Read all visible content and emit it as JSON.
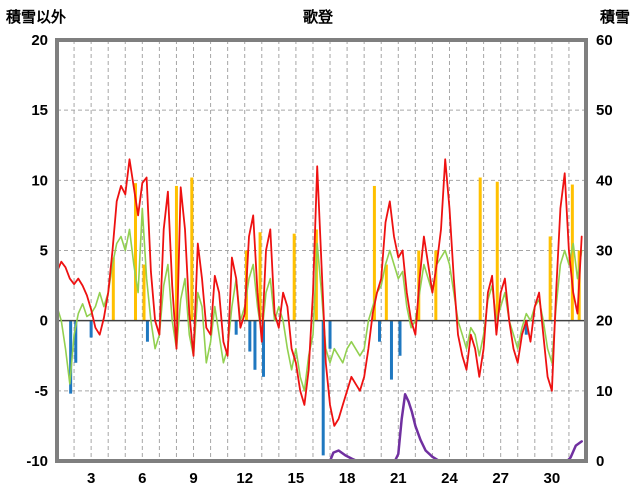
{
  "page": {
    "title": "歌登",
    "left_axis_label": "積雪以外",
    "right_axis_label": "積雪"
  },
  "chart_data": {
    "type": "line",
    "title": "歌登",
    "left_axis": {
      "label": "積雪以外",
      "min": -10,
      "max": 20,
      "ticks": [
        20,
        15,
        10,
        5,
        0,
        -5,
        -10
      ]
    },
    "right_axis": {
      "label": "積雪",
      "min": 0,
      "max": 60,
      "ticks": [
        60,
        50,
        40,
        30,
        20,
        10,
        0
      ]
    },
    "x_axis": {
      "min": 1,
      "max": 32,
      "tick_labels": [
        3,
        6,
        9,
        12,
        15,
        18,
        21,
        24,
        27,
        30
      ],
      "grid_interval": 1
    },
    "style": {
      "frame_color": "#7f7f7f",
      "grid_color": "#a6a6a6",
      "zero_line_color": "#404040",
      "background": "#ffffff"
    },
    "series": [
      {
        "name": "orange-bars",
        "type": "bar",
        "axis": "left",
        "color": "#ffc000",
        "points": [
          [
            4.3,
            4.5
          ],
          [
            5.6,
            9.8
          ],
          [
            6.1,
            4.0
          ],
          [
            8.0,
            9.6
          ],
          [
            8.9,
            10.2
          ],
          [
            12.1,
            5.0
          ],
          [
            12.9,
            6.3
          ],
          [
            14.9,
            6.2
          ],
          [
            16.2,
            6.5
          ],
          [
            19.6,
            9.6
          ],
          [
            20.3,
            4.0
          ],
          [
            22.2,
            5.0
          ],
          [
            23.2,
            5.0
          ],
          [
            25.8,
            10.2
          ],
          [
            26.8,
            9.9
          ],
          [
            29.9,
            6.0
          ],
          [
            31.2,
            9.7
          ],
          [
            31.6,
            5.0
          ]
        ]
      },
      {
        "name": "blue-bars",
        "type": "bar",
        "axis": "left",
        "color": "#1f78c0",
        "points": [
          [
            1.8,
            -5.2
          ],
          [
            2.1,
            -3.0
          ],
          [
            3.0,
            -1.2
          ],
          [
            6.3,
            -1.5
          ],
          [
            11.5,
            -1.0
          ],
          [
            12.3,
            -2.2
          ],
          [
            12.6,
            -3.5
          ],
          [
            13.1,
            -4.0
          ],
          [
            16.6,
            -9.6
          ],
          [
            17.0,
            -2.0
          ],
          [
            19.9,
            -1.5
          ],
          [
            20.6,
            -4.2
          ],
          [
            21.1,
            -2.5
          ],
          [
            28.5,
            -1.0
          ]
        ]
      },
      {
        "name": "green-line",
        "type": "line",
        "axis": "left",
        "color": "#92d050",
        "width": 1.6,
        "x_start": 1,
        "x_step": 0.25,
        "values": [
          1.0,
          0.0,
          -2.0,
          -4.5,
          -1.0,
          0.5,
          1.2,
          0.3,
          0.5,
          1.0,
          2.0,
          1.0,
          2.0,
          4.0,
          5.5,
          6.0,
          5.0,
          6.5,
          4.0,
          2.0,
          8.0,
          3.0,
          0.0,
          -2.0,
          -1.0,
          2.5,
          4.0,
          0.0,
          -2.0,
          1.5,
          3.0,
          -1.0,
          -2.5,
          2.0,
          1.0,
          -3.0,
          -1.5,
          1.0,
          -1.0,
          -3.0,
          -2.0,
          1.0,
          3.0,
          0.0,
          1.0,
          3.0,
          4.0,
          1.0,
          -1.0,
          2.0,
          3.0,
          0.0,
          1.0,
          0.0,
          -2.0,
          -3.5,
          -2.0,
          -4.0,
          -5.0,
          -2.5,
          -1.0,
          5.5,
          2.0,
          -2.0,
          -3.0,
          -2.0,
          -2.5,
          -3.0,
          -2.0,
          -1.5,
          -2.0,
          -2.5,
          -2.0,
          0.0,
          1.0,
          2.0,
          2.5,
          4.0,
          5.0,
          4.0,
          3.0,
          3.5,
          1.0,
          -0.5,
          0.0,
          2.0,
          4.0,
          3.0,
          2.0,
          4.0,
          4.5,
          5.0,
          4.0,
          2.0,
          0.0,
          -1.0,
          -2.0,
          -0.5,
          -1.0,
          -2.5,
          -1.0,
          1.5,
          2.5,
          0.0,
          1.0,
          2.0,
          0.0,
          -1.0,
          -2.0,
          -0.5,
          0.5,
          0.0,
          1.0,
          1.5,
          0.0,
          -2.0,
          -3.0,
          1.0,
          4.0,
          5.0,
          4.0,
          5.5,
          3.0,
          5.0
        ]
      },
      {
        "name": "red-line",
        "type": "line",
        "axis": "left",
        "color": "#ee1111",
        "width": 1.8,
        "x_start": 1,
        "x_step": 0.25,
        "values": [
          3.5,
          4.2,
          3.8,
          3.0,
          2.6,
          3.0,
          2.5,
          1.8,
          0.8,
          -0.5,
          -1.0,
          0.2,
          2.0,
          5.0,
          8.5,
          9.6,
          9.0,
          11.5,
          9.5,
          7.5,
          9.8,
          10.2,
          3.5,
          0.0,
          -1.0,
          6.5,
          9.2,
          2.5,
          -2.0,
          9.5,
          6.5,
          0.5,
          -2.5,
          5.5,
          3.0,
          -0.5,
          -1.0,
          3.2,
          2.0,
          -1.5,
          -2.5,
          4.5,
          3.0,
          -0.5,
          0.5,
          6.0,
          7.5,
          2.0,
          -1.5,
          5.0,
          6.5,
          0.5,
          -0.5,
          2.0,
          1.0,
          -2.0,
          -3.0,
          -5.0,
          -6.0,
          -3.5,
          2.0,
          11.0,
          4.0,
          -3.0,
          -6.0,
          -7.5,
          -7.0,
          -6.0,
          -5.0,
          -4.0,
          -4.5,
          -5.0,
          -4.0,
          -2.0,
          0.5,
          2.0,
          3.0,
          7.0,
          8.5,
          6.0,
          4.5,
          5.0,
          2.0,
          0.0,
          -1.0,
          3.0,
          6.0,
          4.0,
          2.0,
          4.0,
          6.5,
          11.5,
          8.0,
          3.0,
          -1.0,
          -2.5,
          -3.5,
          -1.0,
          -2.0,
          -4.0,
          -2.0,
          2.0,
          3.2,
          -1.0,
          2.0,
          3.0,
          0.0,
          -2.0,
          -3.0,
          -1.0,
          0.0,
          -1.5,
          1.0,
          2.0,
          -1.0,
          -4.0,
          -5.0,
          2.0,
          8.0,
          10.5,
          5.0,
          2.0,
          0.5,
          6.0
        ]
      },
      {
        "name": "purple-snow-line",
        "type": "xyline",
        "axis": "right",
        "color": "#7030a0",
        "width": 2.5,
        "x": [
          1,
          17.0,
          17.2,
          17.5,
          17.9,
          18.3,
          18.6,
          20.8,
          21.0,
          21.2,
          21.4,
          21.6,
          21.8,
          22.0,
          22.3,
          22.6,
          23.0,
          23.4,
          30.9,
          31.1,
          31.4,
          31.75
        ],
        "y": [
          0,
          0,
          1.2,
          1.5,
          0.8,
          0.3,
          0,
          0,
          1.0,
          6.0,
          9.5,
          8.5,
          7.0,
          5.0,
          3.0,
          1.5,
          0.6,
          0,
          0,
          0.5,
          2.2,
          2.8
        ]
      }
    ]
  }
}
